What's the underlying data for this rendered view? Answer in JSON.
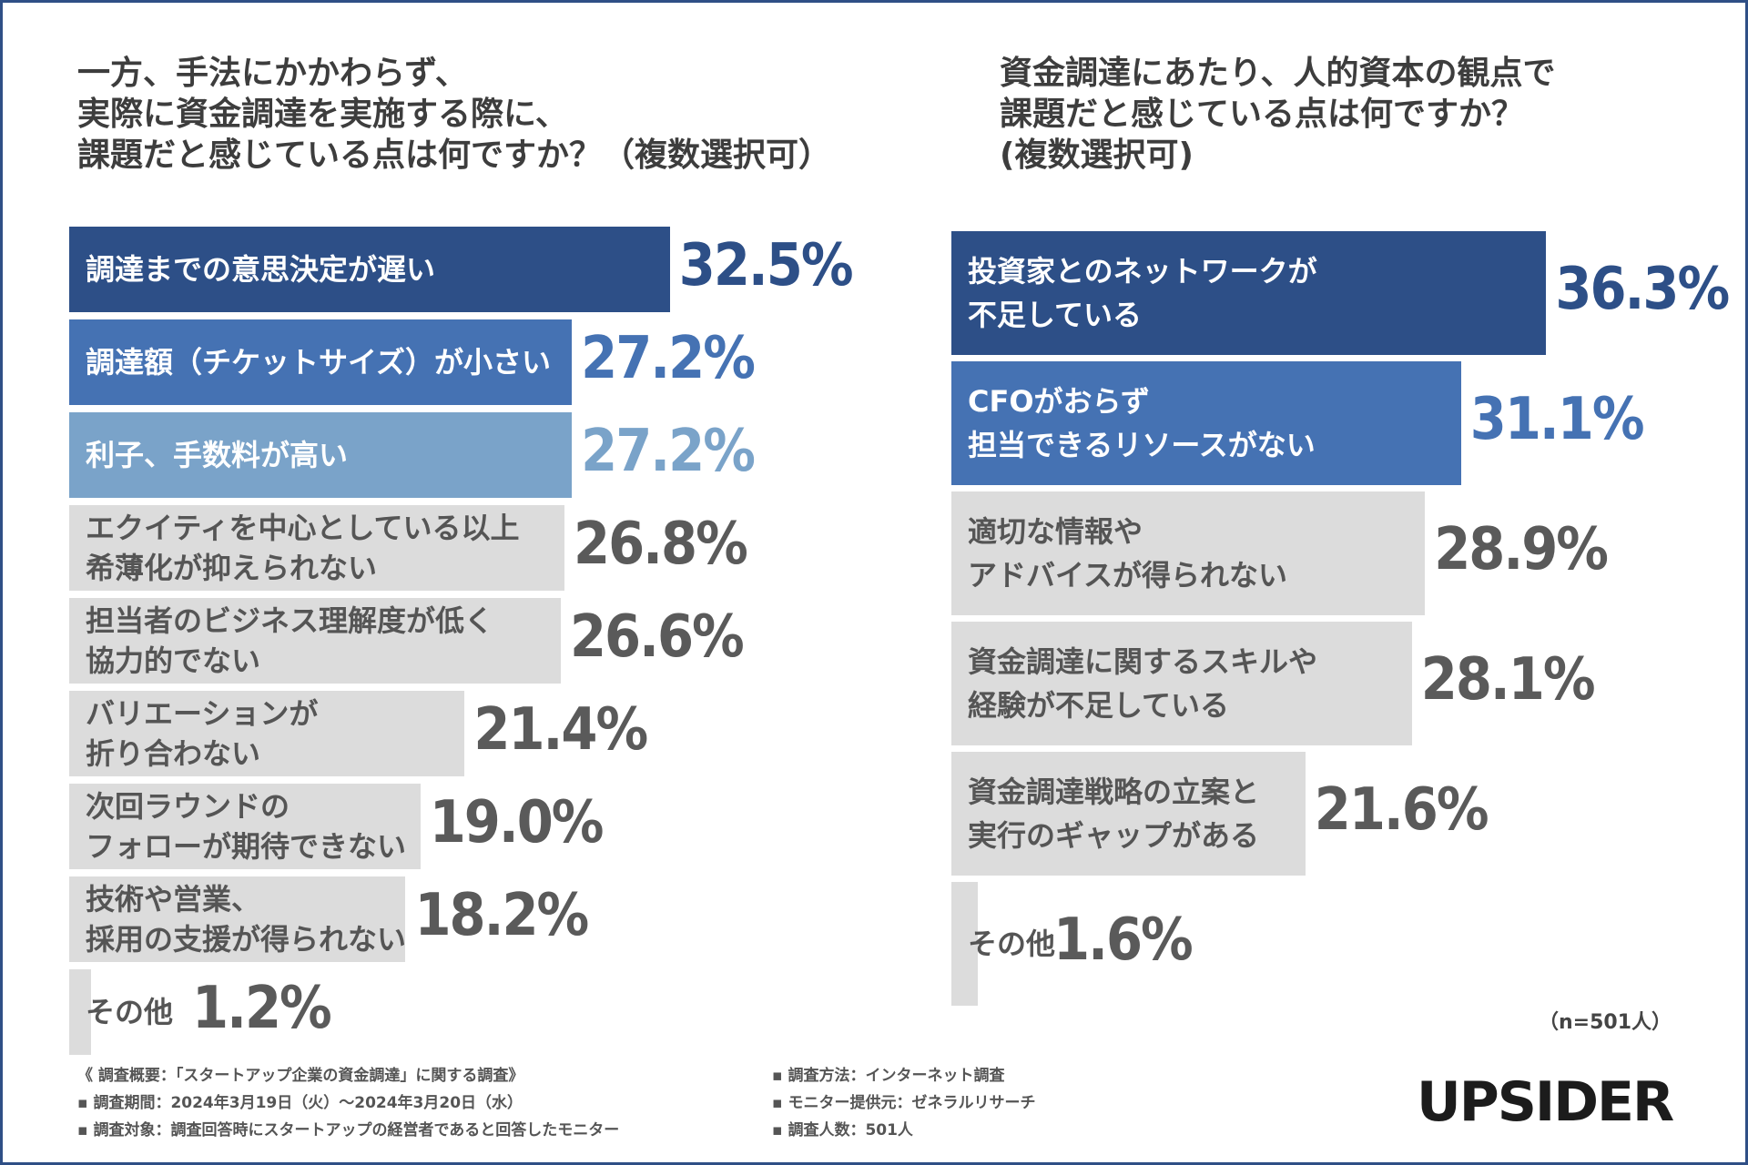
{
  "colors": {
    "dark": "#2d4f87",
    "mid": "#4572b3",
    "light": "#7aa3c9",
    "gray_bar": "#dcdcdc",
    "gray_text": "#5a5a5a",
    "gray_label": "#555555"
  },
  "chart_data": [
    {
      "type": "bar",
      "orientation": "horizontal",
      "title": "一方、手法にかかわらず、\n実際に資金調達を実施する際に、\n課題だと感じている点は何ですか？（複数選択可）",
      "unit": "%",
      "categories": [
        "調達までの意思決定が遅い",
        "調達額（チケットサイズ）が小さい",
        "利子、手数料が高い",
        "エクイティを中心としている以上\n希薄化が抑えられない",
        "担当者のビジネス理解度が低く\n協力的でない",
        "バリエーションが\n折り合わない",
        "次回ラウンドの\nフォローが期待できない",
        "技術や営業、\n採用の支援が得られない",
        "その他"
      ],
      "values": [
        32.5,
        27.2,
        27.2,
        26.8,
        26.6,
        21.4,
        19.0,
        18.2,
        1.2
      ],
      "value_labels": [
        "32.5%",
        "27.2%",
        "27.2%",
        "26.8%",
        "26.6%",
        "21.4%",
        "19.0%",
        "18.2%",
        "1.2%"
      ],
      "highlight": [
        "dark",
        "mid",
        "light",
        "gray",
        "gray",
        "gray",
        "gray",
        "gray",
        "gray"
      ]
    },
    {
      "type": "bar",
      "orientation": "horizontal",
      "title": "資金調達にあたり、人的資本の観点で\n課題だと感じている点は何ですか？\n(複数選択可)",
      "unit": "%",
      "categories": [
        "投資家とのネットワークが\n不足している",
        "CFOがおらず\n担当できるリソースがない",
        "適切な情報や\nアドバイスが得られない",
        "資金調達に関するスキルや\n経験が不足している",
        "資金調達戦略の立案と\n実行のギャップがある",
        "その他"
      ],
      "values": [
        36.3,
        31.1,
        28.9,
        28.1,
        21.6,
        1.6
      ],
      "value_labels": [
        "36.3%",
        "31.1%",
        "28.9%",
        "28.1%",
        "21.6%",
        "1.6%"
      ],
      "highlight": [
        "dark",
        "mid",
        "gray",
        "gray",
        "gray",
        "gray"
      ]
    }
  ],
  "sample_size": "（n=501人）",
  "footer": {
    "survey_title": "《 調査概要：「スタートアップ企業の資金調達」に関する調査》",
    "period": "▪ 調査期間：2024年3月19日（火）〜2024年3月20日（水）",
    "target": "▪ 調査対象：調査回答時にスタートアップの経営者であると回答したモニター",
    "method": "▪ 調査方法：インターネット調査",
    "provider": "▪ モニター提供元：ゼネラルリサーチ",
    "count": "▪ 調査人数：501人"
  },
  "logo": "UPSIDER"
}
